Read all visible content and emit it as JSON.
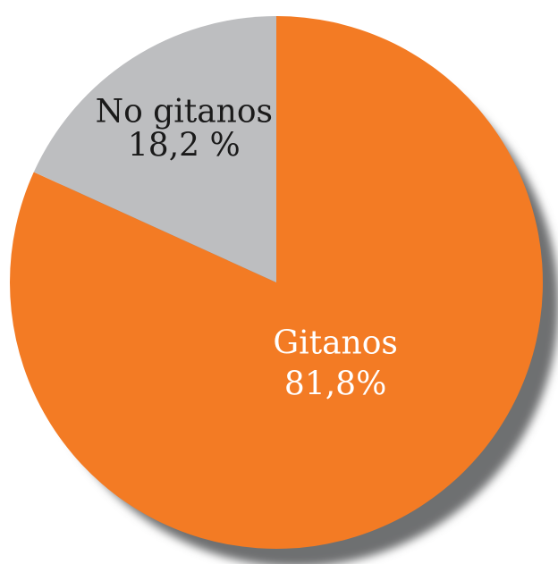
{
  "colors": {
    "gitanos": "#F37B24",
    "no_gitanos": "#BDBEC0",
    "shadow": "#6E6F71",
    "background": "#FFFFFF",
    "label_gitanos": "#FFFFFF",
    "label_no_gitanos": "#1A1A1A"
  },
  "chart_data": {
    "type": "pie",
    "title": "",
    "start_angle": "12 o'clock",
    "direction": "clockwise",
    "slices": [
      {
        "key": "gitanos",
        "label": "Gitanos",
        "value_label": "81,8%",
        "value": 81.8
      },
      {
        "key": "no_gitanos",
        "label": "No gitanos",
        "value_label": "18,2 %",
        "value": 18.2
      }
    ]
  }
}
